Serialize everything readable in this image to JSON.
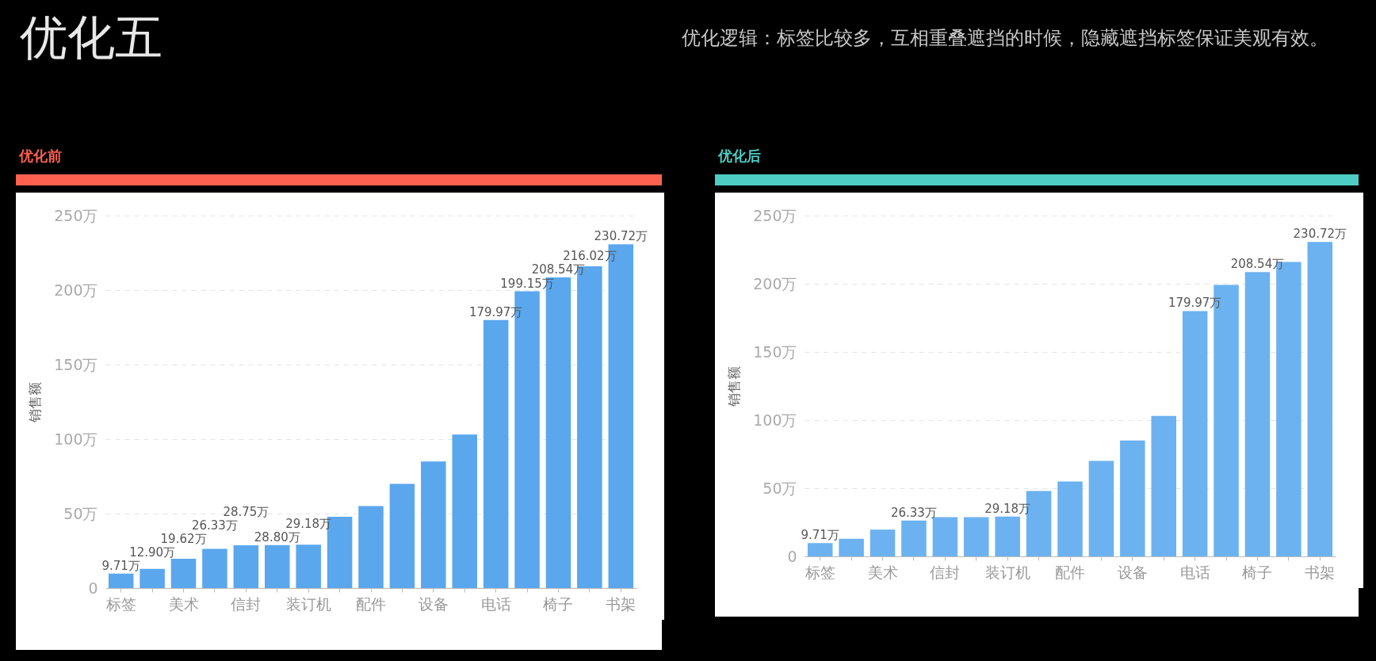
{
  "chart_data": [
    {
      "type": "bar",
      "title": "优化前",
      "annotations": [
        "优化五",
        "优化逻辑：标签比较多，互相重叠遮挡的时候，隐藏遮挡标签保证美观有效。"
      ],
      "ylabel": "销售额",
      "categories": [
        "标签",
        null,
        "美术",
        null,
        "信封",
        null,
        "装订机",
        null,
        "配件",
        null,
        "设备",
        null,
        "电话",
        null,
        "椅子",
        null,
        "书架"
      ],
      "values": [
        9.71,
        12.9,
        19.62,
        26.33,
        28.75,
        28.8,
        29.18,
        47.9,
        55,
        70,
        85,
        103,
        179.97,
        199.15,
        208.54,
        216.02,
        230.72
      ],
      "value_labels": [
        "9.71万",
        "12.90万",
        "19.62万",
        "26.33万",
        "28.75万",
        "28.80万",
        "29.18万",
        null,
        null,
        null,
        null,
        null,
        "179.97万",
        "199.15万",
        "208.54万",
        "216.02万",
        "230.72万"
      ],
      "color": "#5aa7ee",
      "ylim": [
        0,
        250
      ],
      "yticks": [
        0,
        {
          "value": 50,
          "label": "50万"
        },
        {
          "value": 100,
          "label": "100万"
        },
        {
          "value": 150,
          "label": "150万"
        },
        {
          "value": 200,
          "label": "200万"
        },
        {
          "value": 250,
          "label": "250万"
        }
      ],
      "grid": "y"
    },
    {
      "type": "bar",
      "title": "优化后",
      "ylabel": "销售额",
      "categories": [
        "标签",
        null,
        "美术",
        null,
        "信封",
        null,
        "装订机",
        null,
        "配件",
        null,
        "设备",
        null,
        "电话",
        null,
        "椅子",
        null,
        "书架"
      ],
      "values": [
        9.71,
        12.9,
        19.62,
        26.33,
        28.75,
        28.8,
        29.18,
        47.9,
        55,
        70,
        85,
        103,
        179.97,
        199.15,
        208.54,
        216.02,
        230.72
      ],
      "value_labels": [
        "9.71万",
        null,
        null,
        "26.33万",
        null,
        null,
        "29.18万",
        null,
        null,
        null,
        null,
        null,
        "179.97万",
        null,
        "208.54万",
        null,
        "230.72万"
      ],
      "color": "#6cb2f0",
      "ylim": [
        0,
        250
      ],
      "yticks": [
        0,
        {
          "value": 50,
          "label": "50万"
        },
        {
          "value": 100,
          "label": "100万"
        },
        {
          "value": 150,
          "label": "150万"
        },
        {
          "value": 200,
          "label": "200万"
        },
        {
          "value": 250,
          "label": "250万"
        }
      ],
      "grid": "y"
    }
  ]
}
